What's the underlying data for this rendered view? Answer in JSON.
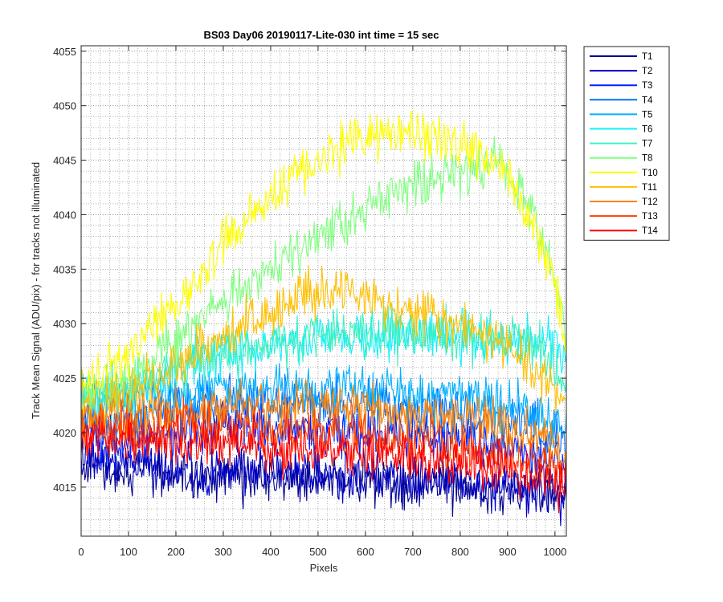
{
  "chart_data": {
    "type": "line",
    "title": "BS03 Day06 20190117-Lite-030 int time = 15 sec",
    "xlabel": "Pixels",
    "ylabel": "Track Mean Signal (ADU/pix) - for tracks not illuminated",
    "xlim": [
      0,
      1024
    ],
    "ylim": [
      4010.5,
      4055.5
    ],
    "xticks": [
      0,
      100,
      200,
      300,
      400,
      500,
      600,
      700,
      800,
      900,
      1000
    ],
    "yticks": [
      4015,
      4020,
      4025,
      4030,
      4035,
      4040,
      4045,
      4050,
      4055
    ],
    "grid": "major and minor, dotted",
    "legend_position": "outside-right-top",
    "noise_note_omitted": true,
    "series": [
      {
        "name": "T1",
        "color": "#00008f",
        "x": [
          0,
          50,
          100,
          200,
          300,
          400,
          500,
          600,
          700,
          800,
          900,
          950,
          1000,
          1024
        ],
        "y": [
          4017.5,
          4016.5,
          4016.2,
          4016.2,
          4016,
          4015.8,
          4015.6,
          4015.5,
          4015.2,
          4014.9,
          4014.7,
          4014.3,
          4014,
          4013.6
        ]
      },
      {
        "name": "T2",
        "color": "#0000c8",
        "x": [
          0,
          50,
          100,
          200,
          300,
          400,
          500,
          600,
          700,
          800,
          900,
          950,
          1000,
          1024
        ],
        "y": [
          4018,
          4017,
          4016.8,
          4016.8,
          4016.6,
          4016.4,
          4016.2,
          4016,
          4015.8,
          4015.5,
          4015.2,
          4014.8,
          4014.5,
          4014
        ]
      },
      {
        "name": "T3",
        "color": "#0020ff",
        "x": [
          0,
          50,
          100,
          200,
          300,
          400,
          500,
          600,
          700,
          800,
          900,
          950,
          1000,
          1024
        ],
        "y": [
          4019.5,
          4019,
          4019.5,
          4020,
          4020.3,
          4020.5,
          4020.4,
          4020.2,
          4019.8,
          4019.3,
          4018.8,
          4018.3,
          4017.5,
          4016.5
        ]
      },
      {
        "name": "T4",
        "color": "#0070ff",
        "x": [
          0,
          50,
          100,
          200,
          300,
          400,
          500,
          600,
          700,
          800,
          900,
          950,
          1000,
          1024
        ],
        "y": [
          4021.5,
          4021,
          4021.5,
          4022.2,
          4022.5,
          4022.8,
          4022.7,
          4022.5,
          4022.2,
          4021.8,
          4021.2,
          4020.6,
          4019.8,
          4018.8
        ]
      },
      {
        "name": "T5",
        "color": "#00b0ff",
        "x": [
          0,
          50,
          100,
          200,
          300,
          400,
          500,
          600,
          700,
          800,
          900,
          950,
          1000,
          1024
        ],
        "y": [
          4023,
          4022.5,
          4023,
          4023.6,
          4024,
          4024.2,
          4024.2,
          4024,
          4023.6,
          4023.2,
          4022.5,
          4021.8,
          4021,
          4019.8
        ]
      },
      {
        "name": "T6",
        "color": "#10f0ff",
        "x": [
          0,
          50,
          100,
          150,
          200,
          300,
          400,
          500,
          600,
          700,
          800,
          900,
          950,
          1000,
          1024
        ],
        "y": [
          4023.5,
          4023,
          4023.8,
          4024.8,
          4025.8,
          4027,
          4028,
          4028.7,
          4029,
          4028.8,
          4028.5,
          4028.2,
          4028.5,
          4028.5,
          4026.5
        ]
      },
      {
        "name": "T7",
        "color": "#40f0c0",
        "x": [
          0,
          50,
          100,
          150,
          200,
          300,
          400,
          500,
          600,
          700,
          800,
          900,
          950,
          1000,
          1024
        ],
        "y": [
          4024,
          4023.5,
          4024.2,
          4025.2,
          4026.2,
          4027.3,
          4028.2,
          4028.8,
          4029.2,
          4029,
          4028.8,
          4028.8,
          4028.5,
          4026.5,
          4024
        ]
      },
      {
        "name": "T8",
        "color": "#80ff80",
        "x": [
          0,
          50,
          100,
          150,
          200,
          250,
          300,
          350,
          400,
          450,
          500,
          550,
          600,
          650,
          700,
          750,
          800,
          850,
          900,
          950,
          1000,
          1024
        ],
        "y": [
          4024,
          4023.8,
          4025,
          4026.8,
          4028.5,
          4030.3,
          4032,
          4033.5,
          4035,
          4036.5,
          4038,
          4039.3,
          4040.5,
          4041.5,
          4042.5,
          4043.3,
          4044.2,
          4044.6,
          4044,
          4041,
          4034,
          4028
        ]
      },
      {
        "name": "T10",
        "color": "#ffff00",
        "x": [
          0,
          50,
          100,
          150,
          200,
          250,
          300,
          350,
          400,
          450,
          500,
          550,
          600,
          650,
          700,
          750,
          800,
          850,
          900,
          950,
          1000,
          1024
        ],
        "y": [
          4025,
          4025.2,
          4027,
          4029.5,
          4031.8,
          4034.5,
          4037,
          4039.5,
          4041.8,
          4043.5,
          4045,
          4046,
          4046.8,
          4047.2,
          4047.3,
          4047,
          4046.5,
          4045.5,
          4043.5,
          4039.5,
          4033.5,
          4028
        ]
      },
      {
        "name": "T11",
        "color": "#ffc000",
        "x": [
          0,
          50,
          100,
          150,
          200,
          250,
          300,
          350,
          400,
          450,
          500,
          550,
          600,
          650,
          700,
          750,
          800,
          850,
          900,
          950,
          1000,
          1024
        ],
        "y": [
          4023,
          4022.8,
          4023.5,
          4024.8,
          4026.2,
          4027.6,
          4029,
          4030.2,
          4031.2,
          4032,
          4032.6,
          4032.8,
          4032.5,
          4031.8,
          4031,
          4030.5,
          4029.8,
          4029,
          4027.8,
          4026,
          4024.2,
          4022
        ]
      },
      {
        "name": "T12",
        "color": "#ff8000",
        "x": [
          0,
          50,
          100,
          200,
          300,
          400,
          500,
          600,
          700,
          800,
          900,
          950,
          1000,
          1024
        ],
        "y": [
          4021.5,
          4021.2,
          4021.5,
          4022,
          4022.3,
          4022.5,
          4022.5,
          4022.3,
          4021.8,
          4021.2,
          4020.5,
          4019.7,
          4018.8,
          4017.5
        ]
      },
      {
        "name": "T13",
        "color": "#ff4000",
        "x": [
          0,
          50,
          100,
          200,
          300,
          400,
          500,
          600,
          700,
          800,
          900,
          950,
          1000,
          1024
        ],
        "y": [
          4020.5,
          4020,
          4020.2,
          4020.5,
          4020.5,
          4020.2,
          4020,
          4019.6,
          4019.1,
          4018.5,
          4017.8,
          4017.2,
          4016.5,
          4015.8
        ]
      },
      {
        "name": "T14",
        "color": "#ff0000",
        "x": [
          0,
          50,
          100,
          200,
          300,
          400,
          500,
          600,
          700,
          800,
          900,
          950,
          1000,
          1024
        ],
        "y": [
          4020,
          4019.2,
          4019.2,
          4019.2,
          4019,
          4018.8,
          4018.4,
          4018,
          4017.6,
          4017.2,
          4016.6,
          4016,
          4015.4,
          4014.8
        ]
      }
    ]
  }
}
